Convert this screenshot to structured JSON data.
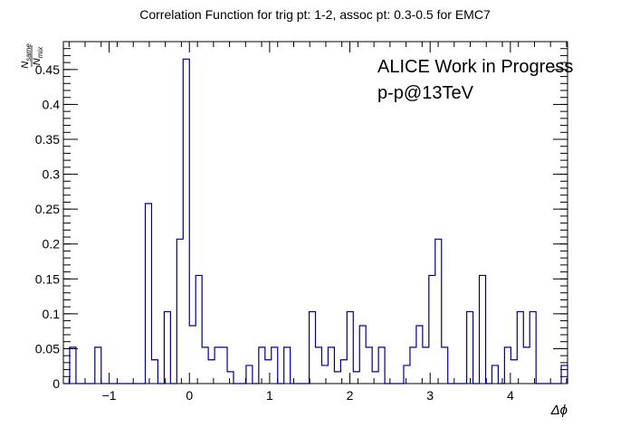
{
  "chart_data": {
    "type": "bar",
    "style": "step-histogram",
    "title": "Correlation Function for trig pt: 1-2, assoc pt: 0.3-0.5 for EMC7",
    "xlabel": "Δϕ",
    "ylabel": {
      "numerator": "N",
      "numerator_sub": "same",
      "denominator": "N",
      "denominator_sub": "mix"
    },
    "annotations": [
      "ALICE Work in Progress",
      "p-p@13TeV"
    ],
    "xlim": [
      -1.5708,
      4.7124
    ],
    "ylim": [
      0,
      0.49
    ],
    "x_ticks": [
      -1,
      0,
      1,
      2,
      3,
      4
    ],
    "y_ticks": [
      0,
      0.05,
      0.1,
      0.15,
      0.2,
      0.25,
      0.3,
      0.35,
      0.4,
      0.45
    ],
    "y_tick_labels": [
      "0",
      "0.05",
      "0.1",
      "0.15",
      "0.2",
      "0.25",
      "0.3",
      "0.35",
      "0.4",
      "0.45"
    ],
    "line_color": "#000080",
    "bin_values": [
      0,
      0.052,
      0,
      0,
      0,
      0.052,
      0,
      0,
      0,
      0,
      0,
      0,
      0,
      0.258,
      0.034,
      0,
      0.103,
      0,
      0.207,
      0.465,
      0.083,
      0.155,
      0.052,
      0.034,
      0.052,
      0.052,
      0.017,
      0,
      0,
      0.026,
      0,
      0.052,
      0.034,
      0.052,
      0,
      0.052,
      0,
      0,
      0,
      0.103,
      0.052,
      0.026,
      0.052,
      0.017,
      0.034,
      0.103,
      0.017,
      0.083,
      0.052,
      0.017,
      0.052,
      0,
      0,
      0,
      0.026,
      0.052,
      0.083,
      0.052,
      0.155,
      0.207,
      0.052,
      0,
      0,
      0,
      0.103,
      0,
      0.155,
      0,
      0.026,
      0,
      0.052,
      0.034,
      0.103,
      0.052,
      0.103,
      0,
      0,
      0,
      0,
      0.026
    ]
  }
}
